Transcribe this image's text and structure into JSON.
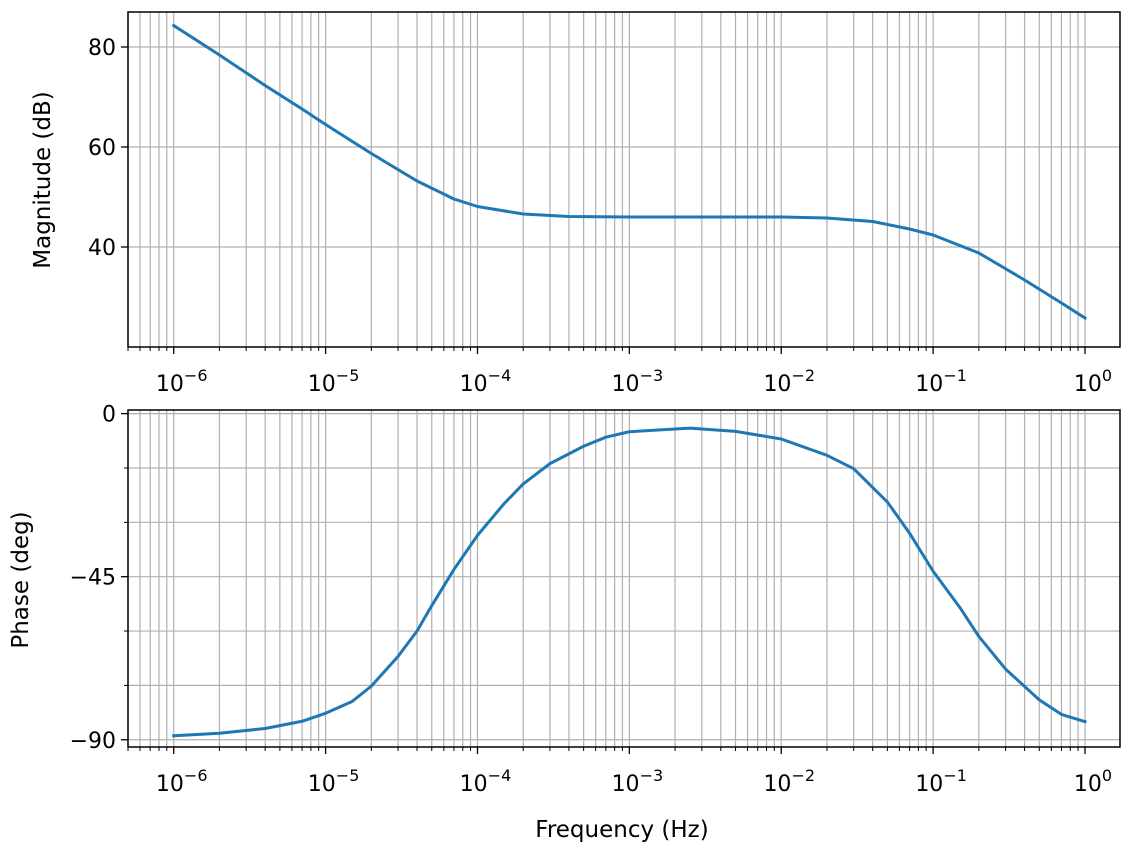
{
  "figure": {
    "xlabel": "Frequency (Hz)"
  },
  "chart_data": [
    {
      "type": "line",
      "name": "magnitude-panel",
      "xscale": "log",
      "xlim": [
        5e-07,
        1.7
      ],
      "ylim": [
        20,
        87
      ],
      "ylabel": "Magnitude (dB)",
      "xticks": [
        1e-06,
        1e-05,
        0.0001,
        0.001,
        0.01,
        0.1,
        1
      ],
      "xtick_exponents": [
        "−6",
        "−5",
        "−4",
        "−3",
        "−2",
        "−1",
        "0"
      ],
      "xtick_base": "10",
      "yticks": [
        40,
        60,
        80
      ],
      "ytick_labels": [
        "40",
        "60",
        "80"
      ],
      "yminor": [],
      "grid": true,
      "color": "#1f77b4",
      "series": [
        {
          "x": [
            1e-06,
            2e-06,
            4e-06,
            7e-06,
            1e-05,
            2e-05,
            4e-05,
            7e-05,
            0.0001,
            0.0002,
            0.0004,
            0.001,
            0.004,
            0.01,
            0.02,
            0.04,
            0.07,
            0.1,
            0.2,
            0.4,
            0.7,
            1
          ],
          "y": [
            84.3,
            78.4,
            72.3,
            67.6,
            64.5,
            58.7,
            53.2,
            49.6,
            48.1,
            46.6,
            46.1,
            46.0,
            46.0,
            46.0,
            45.8,
            45.1,
            43.6,
            42.4,
            38.8,
            33.4,
            28.8,
            25.8
          ]
        }
      ]
    },
    {
      "type": "line",
      "name": "phase-panel",
      "xscale": "log",
      "xlim": [
        5e-07,
        1.7
      ],
      "ylim": [
        -92,
        1
      ],
      "ylabel": "Phase (deg)",
      "xticks": [
        1e-06,
        1e-05,
        0.0001,
        0.001,
        0.01,
        0.1,
        1
      ],
      "xtick_exponents": [
        "−6",
        "−5",
        "−4",
        "−3",
        "−2",
        "−1",
        "0"
      ],
      "xtick_base": "10",
      "yticks": [
        -90,
        -45,
        0
      ],
      "ytick_labels": [
        "−90",
        "−45",
        "0"
      ],
      "yminor": [
        -75,
        -60,
        -30,
        -15
      ],
      "grid": true,
      "color": "#1f77b4",
      "series": [
        {
          "x": [
            1e-06,
            2e-06,
            4e-06,
            7e-06,
            1e-05,
            1.5e-05,
            2e-05,
            3e-05,
            4e-05,
            5e-05,
            7e-05,
            0.0001,
            0.00015,
            0.0002,
            0.0003,
            0.0005,
            0.0007,
            0.001,
            0.0025,
            0.005,
            0.01,
            0.02,
            0.03,
            0.05,
            0.07,
            0.1,
            0.15,
            0.2,
            0.3,
            0.5,
            0.7,
            1
          ],
          "y": [
            -88.9,
            -88.2,
            -86.9,
            -84.9,
            -82.7,
            -79.4,
            -75.2,
            -67.0,
            -60.0,
            -53.0,
            -43.0,
            -33.6,
            -24.8,
            -19.4,
            -13.8,
            -9.0,
            -6.5,
            -5.0,
            -4.0,
            -4.9,
            -7.0,
            -11.5,
            -15.2,
            -24.4,
            -33.0,
            -43.5,
            -53.5,
            -61.5,
            -70.5,
            -79.0,
            -83.0,
            -85.0
          ]
        }
      ]
    }
  ]
}
